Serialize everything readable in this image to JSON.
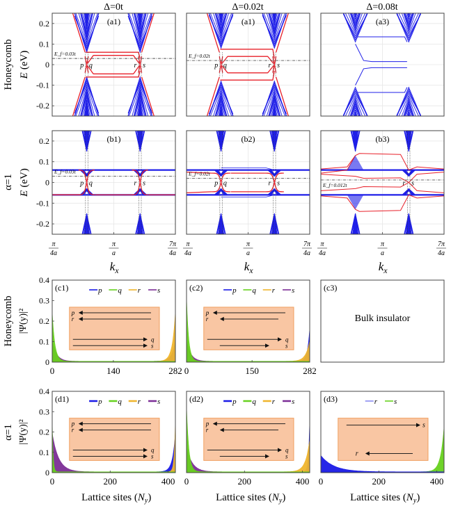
{
  "column_titles": [
    "Δ=0t",
    "Δ=0.02t",
    "Δ=0.08t"
  ],
  "row_labels": {
    "a": "Honeycomb",
    "b": "α=1",
    "c": "Honeycomb",
    "d": "α=1"
  },
  "colors": {
    "bulk": "#1f1fe8",
    "edge": "#e8202a",
    "p": "#1a1ae6",
    "q": "#66d11e",
    "r": "#efb52d",
    "s": "#7b2d96",
    "d3_r": "#8a8cf0",
    "inset_fill": "#f9c6a3",
    "inset_border": "#f0a060",
    "ef_line": "#555555"
  },
  "chart_data": [
    {
      "id": "a1",
      "type": "line",
      "panel_label": "(a1)",
      "row": "a",
      "col": 0,
      "ylabel_main": "E",
      "ylabel_unit": "(eV)",
      "ylim": [
        -0.25,
        0.25
      ],
      "yticks": [
        -0.2,
        -0.1,
        0,
        0.1,
        0.2
      ],
      "ytick_labels": [
        "-0.2",
        "-0.1",
        "0",
        "0.1",
        "0.2"
      ],
      "xlim": [
        0.25,
        1.75
      ],
      "fermi": {
        "label": "E_f=0.03t",
        "value": 0.03
      },
      "cone_centers": [
        0.67,
        1.32
      ],
      "gap_top": 0.06,
      "gap_bottom": -0.06,
      "crossing_labels": [
        "p",
        "q",
        "r",
        "s"
      ],
      "edge_mode": "honeycomb0"
    },
    {
      "id": "a2",
      "type": "line",
      "panel_label": "(a1)",
      "row": "a",
      "col": 1,
      "ylim": [
        -0.25,
        0.25
      ],
      "xlim": [
        0.25,
        1.75
      ],
      "fermi": {
        "label": "E_f=0.02t",
        "value": 0.02
      },
      "cone_centers": [
        0.67,
        1.32
      ],
      "gap_top": 0.08,
      "gap_bottom": -0.08,
      "crossing_labels": [
        "p",
        "q",
        "r",
        "s"
      ],
      "edge_mode": "honeycomb002"
    },
    {
      "id": "a3",
      "type": "line",
      "panel_label": "(a3)",
      "row": "a",
      "col": 2,
      "ylim": [
        -0.25,
        0.25
      ],
      "xlim": [
        0.25,
        1.75
      ],
      "cone_centers": [
        0.67,
        1.32
      ],
      "gap_top": 0.11,
      "gap_bottom": -0.11,
      "edge_mode": "honeycomb008"
    },
    {
      "id": "b1",
      "type": "line",
      "panel_label": "(b1)",
      "row": "b",
      "col": 0,
      "ylabel_main": "E",
      "ylabel_unit": "(eV)",
      "ylim": [
        -0.25,
        0.25
      ],
      "yticks": [
        -0.2,
        -0.1,
        0,
        0.1,
        0.2
      ],
      "ytick_labels": [
        "-0.2",
        "-0.1",
        "0",
        "0.1",
        "0.2"
      ],
      "xlim": [
        0.25,
        1.75
      ],
      "xticks": [
        0.25,
        1,
        1.75
      ],
      "xtick_labels": [
        "π/4a",
        "π/a",
        "7π/4a"
      ],
      "xlabel": "k_x",
      "fermi": {
        "label": "E_f=0.03t",
        "value": 0.03
      },
      "cone_centers": [
        0.67,
        1.32
      ],
      "flat_top": 0.06,
      "flat_bottom": -0.06,
      "crossing_labels": [
        "p",
        "q",
        "r",
        "s"
      ],
      "edge_mode": "alpha0"
    },
    {
      "id": "b2",
      "type": "line",
      "panel_label": "(b2)",
      "row": "b",
      "col": 1,
      "ylim": [
        -0.25,
        0.25
      ],
      "xlim": [
        0.25,
        1.75
      ],
      "xticks": [
        0.25,
        1,
        1.75
      ],
      "xtick_labels": [
        "π/4a",
        "π/a",
        "7π/4a"
      ],
      "xlabel": "k_x",
      "fermi": {
        "label": "E_f=0.02t",
        "value": 0.02
      },
      "cone_centers": [
        0.67,
        1.32
      ],
      "flat_top": 0.06,
      "flat_bottom": -0.06,
      "crossing_labels": [
        "p",
        "q",
        "r",
        "s"
      ],
      "edge_mode": "alpha002"
    },
    {
      "id": "b3",
      "type": "line",
      "panel_label": "(b3)",
      "row": "b",
      "col": 2,
      "ylim": [
        -0.25,
        0.25
      ],
      "xlim": [
        0.25,
        1.75
      ],
      "xticks": [
        0.25,
        1,
        1.75
      ],
      "xtick_labels": [
        "π/4a",
        "π/a",
        "7π/4a"
      ],
      "xlabel": "k_x",
      "fermi": {
        "label": "E_f=0.012t",
        "value": 0.012
      },
      "cone_centers": [
        0.67,
        1.32
      ],
      "flat_top": 0.06,
      "flat_bottom": -0.06,
      "crossing_labels": [
        "r",
        "s"
      ],
      "edge_mode": "alpha008"
    },
    {
      "id": "c1",
      "type": "area",
      "panel_label": "(c1)",
      "row": "c",
      "col": 0,
      "ylabel": "|Ψ(y)|²",
      "ylim": [
        0,
        0.4
      ],
      "yticks": [
        0,
        0.1,
        0.2,
        0.3,
        0.4
      ],
      "ytick_labels": [
        "0",
        "0.1",
        "0.2",
        "0.3",
        "0.4"
      ],
      "xlim": [
        0,
        282
      ],
      "xticks": [
        0,
        140,
        282
      ],
      "xtick_labels": [
        "0",
        "140",
        "282"
      ],
      "legend": [
        "p",
        "q",
        "r",
        "s"
      ],
      "series": [
        {
          "name": "p",
          "edge": "right",
          "peak": 0.1,
          "decay": 8
        },
        {
          "name": "q",
          "edge": "left",
          "peak": 0.24,
          "decay": 6
        },
        {
          "name": "r",
          "edge": "right",
          "peak": 0.24,
          "decay": 7
        },
        {
          "name": "s",
          "edge": "left",
          "peak": 0.1,
          "decay": 10
        }
      ],
      "inset": {
        "left_arrows": [
          "p",
          "r"
        ],
        "right_arrows": [
          "q",
          "s"
        ]
      }
    },
    {
      "id": "c2",
      "type": "area",
      "panel_label": "(c2)",
      "row": "c",
      "col": 1,
      "ylim": [
        0,
        0.4
      ],
      "xlim": [
        0,
        282
      ],
      "xticks": [
        0,
        150,
        282
      ],
      "xtick_labels": [
        "0",
        "150",
        "282"
      ],
      "legend": [
        "p",
        "q",
        "r",
        "s"
      ],
      "series": [
        {
          "name": "p",
          "edge": "right",
          "peak": 0.16,
          "decay": 5
        },
        {
          "name": "q",
          "edge": "left",
          "peak": 0.31,
          "decay": 5
        },
        {
          "name": "r",
          "edge": "right",
          "peak": 0.1,
          "decay": 9
        },
        {
          "name": "s",
          "edge": "left",
          "peak": 0.1,
          "decay": 10
        }
      ],
      "inset": {
        "left_arrows": [
          "p",
          "r"
        ],
        "right_arrows": [
          "q",
          "s"
        ]
      }
    },
    {
      "id": "c3",
      "type": "text",
      "panel_label": "(c3)",
      "row": "c",
      "col": 2,
      "text": "Bulk insulator"
    },
    {
      "id": "d1",
      "type": "area",
      "panel_label": "(d1)",
      "row": "d",
      "col": 0,
      "ylabel": "|Ψ(y)|²",
      "ylim": [
        0,
        0.4
      ],
      "yticks": [
        0,
        0.1,
        0.2,
        0.3,
        0.4
      ],
      "ytick_labels": [
        "0",
        "0.1",
        "0.2",
        "0.3",
        "0.4"
      ],
      "xlim": [
        0,
        425
      ],
      "xticks": [
        0,
        200,
        400
      ],
      "xtick_labels": [
        "0",
        "200",
        "400"
      ],
      "xlabel": "Lattice sites (N_y)",
      "legend": [
        "p",
        "q",
        "r",
        "s"
      ],
      "series": [
        {
          "name": "p",
          "edge": "right",
          "peak": 0.19,
          "decay": 10
        },
        {
          "name": "q",
          "edge": "left",
          "peak": 0.25,
          "decay": 3
        },
        {
          "name": "r",
          "edge": "right",
          "peak": 0.25,
          "decay": 4
        },
        {
          "name": "s",
          "edge": "left",
          "peak": 0.19,
          "decay": 22
        }
      ],
      "inset": {
        "left_arrows": [
          "p",
          "r"
        ],
        "right_arrows": [
          "q",
          "s"
        ]
      }
    },
    {
      "id": "d2",
      "type": "area",
      "panel_label": "(d2)",
      "row": "d",
      "col": 1,
      "ylim": [
        0,
        0.4
      ],
      "xlim": [
        0,
        425
      ],
      "xticks": [
        0,
        200,
        400
      ],
      "xtick_labels": [
        "0",
        "200",
        "400"
      ],
      "xlabel": "Lattice sites (N_y)",
      "legend": [
        "p",
        "q",
        "r",
        "s"
      ],
      "series": [
        {
          "name": "p",
          "edge": "right",
          "peak": 0.25,
          "decay": 4
        },
        {
          "name": "q",
          "edge": "left",
          "peak": 0.32,
          "decay": 8
        },
        {
          "name": "r",
          "edge": "right",
          "peak": 0.16,
          "decay": 14
        },
        {
          "name": "s",
          "edge": "left",
          "peak": 0.12,
          "decay": 20
        }
      ],
      "inset": {
        "left_arrows": [
          "p",
          "r"
        ],
        "right_arrows": [
          "q",
          "s"
        ]
      }
    },
    {
      "id": "d3",
      "type": "area",
      "panel_label": "(d3)",
      "row": "d",
      "col": 2,
      "ylim": [
        0,
        0.4
      ],
      "xlim": [
        0,
        425
      ],
      "xticks": [
        0,
        200,
        400
      ],
      "xtick_labels": [
        "0",
        "200",
        "400"
      ],
      "xlabel": "Lattice sites (N_y)",
      "legend": [
        "r",
        "s"
      ],
      "series": [
        {
          "name": "r",
          "edge": "left",
          "peak": 0.08,
          "decay": 45
        },
        {
          "name": "s",
          "edge": "right",
          "peak": 0.22,
          "decay": 12
        }
      ],
      "inset": {
        "left_arrows": [
          "r"
        ],
        "right_arrows": [
          "s"
        ],
        "layout": "s-top-r-bottom"
      }
    }
  ]
}
